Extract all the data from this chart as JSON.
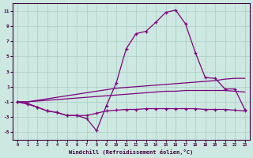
{
  "x": [
    0,
    1,
    2,
    3,
    4,
    5,
    6,
    7,
    8,
    9,
    10,
    11,
    12,
    13,
    14,
    15,
    16,
    17,
    18,
    19,
    20,
    21,
    22,
    23
  ],
  "lineA": [
    -1,
    -1.0,
    -0.8,
    -0.6,
    -0.4,
    -0.2,
    0.0,
    0.2,
    0.4,
    0.6,
    0.8,
    0.9,
    1.0,
    1.1,
    1.2,
    1.3,
    1.4,
    1.5,
    1.6,
    1.7,
    1.8,
    2.0,
    2.1,
    2.1
  ],
  "lineB": [
    -1,
    -1.0,
    -0.9,
    -0.8,
    -0.7,
    -0.6,
    -0.5,
    -0.4,
    -0.3,
    -0.2,
    -0.1,
    0.0,
    0.1,
    0.2,
    0.3,
    0.4,
    0.4,
    0.5,
    0.5,
    0.5,
    0.5,
    0.5,
    0.4,
    0.3
  ],
  "lineC_x": [
    0,
    1,
    2,
    3,
    4,
    5,
    6,
    7,
    8,
    9,
    10,
    11,
    12,
    13,
    14,
    15,
    16,
    17,
    18,
    19,
    20,
    21,
    22,
    23
  ],
  "lineC_y": [
    -1,
    -1.2,
    -1.7,
    -2.2,
    -2.4,
    -2.8,
    -2.8,
    -3.2,
    -4.8,
    -1.5,
    1.5,
    6.0,
    8.0,
    8.3,
    9.5,
    10.8,
    11.1,
    9.3,
    5.5,
    2.2,
    2.1,
    0.7,
    0.7,
    -2.0
  ],
  "lineD_x": [
    0,
    1,
    2,
    3,
    4,
    5,
    6,
    7,
    8,
    9,
    10,
    11,
    12,
    13,
    14,
    15,
    16,
    17,
    18,
    19,
    20,
    21,
    22,
    23
  ],
  "lineD_y": [
    -1,
    -1.3,
    -1.7,
    -2.2,
    -2.4,
    -2.8,
    -2.8,
    -2.8,
    -2.5,
    -2.2,
    -2.1,
    -2.0,
    -2.0,
    -1.9,
    -1.9,
    -1.9,
    -1.9,
    -1.9,
    -1.9,
    -2.0,
    -2.0,
    -2.0,
    -2.1,
    -2.2
  ],
  "ylim": [
    -6,
    12
  ],
  "xlim": [
    -0.5,
    23.5
  ],
  "yticks": [
    -5,
    -3,
    -1,
    1,
    3,
    5,
    7,
    9,
    11
  ],
  "xticks": [
    0,
    1,
    2,
    3,
    4,
    5,
    6,
    7,
    8,
    9,
    10,
    11,
    12,
    13,
    14,
    15,
    16,
    17,
    18,
    19,
    20,
    21,
    22,
    23
  ],
  "xlabel": "Windchill (Refroidissement éolien,°C)",
  "bg_color": "#cce8e0",
  "line_color": "#800080",
  "grid_color": "#aaccc4"
}
